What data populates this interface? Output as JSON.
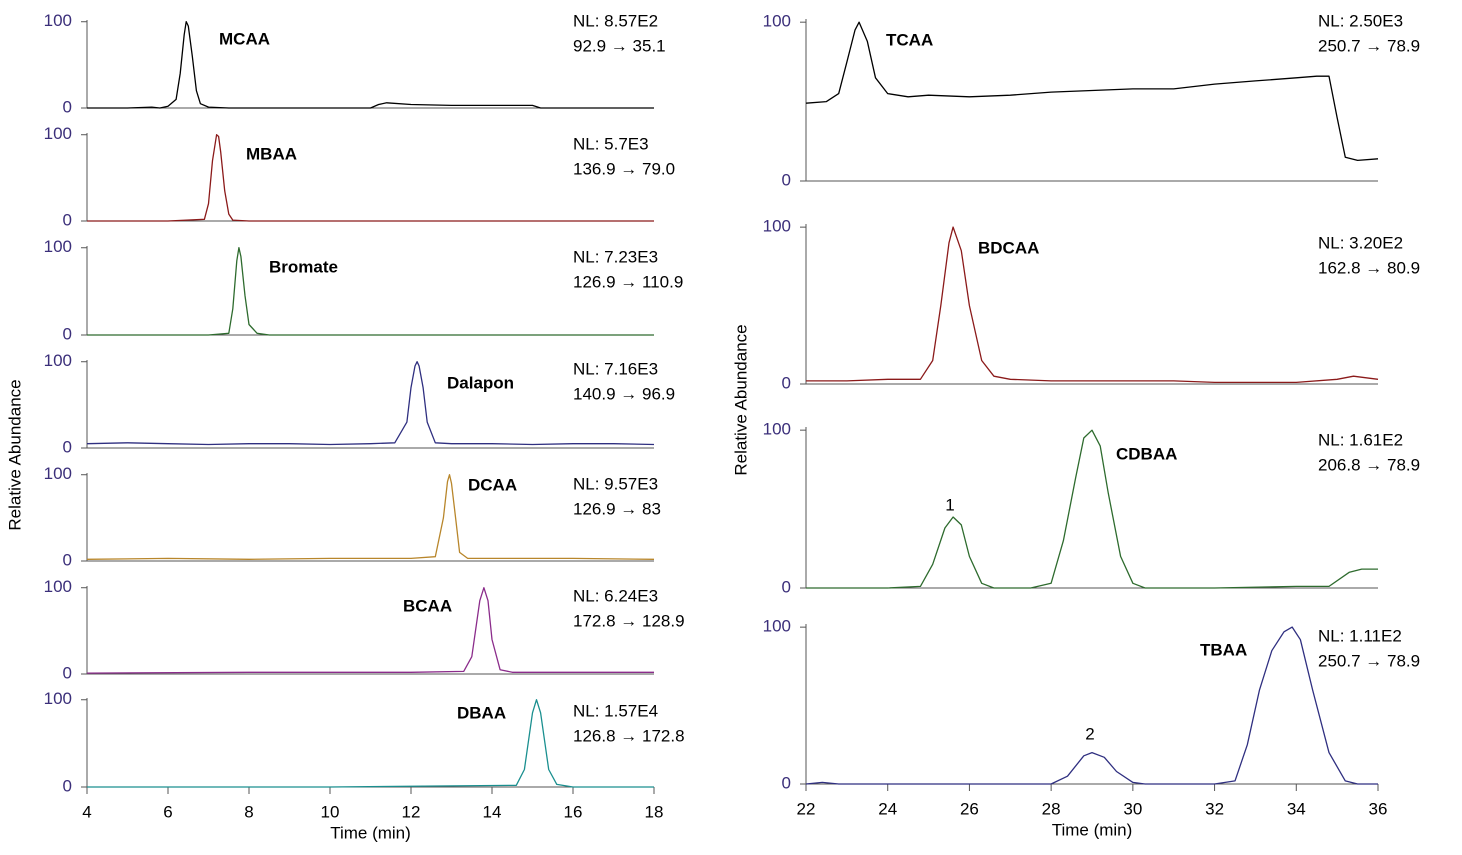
{
  "chart_data": [
    {
      "type": "line",
      "title": "MCAA",
      "annotations": [
        "NL: 8.57E2",
        "92.9 → 35.1"
      ],
      "color": "#000000",
      "ylabel": "Relative Abundance",
      "xlim": [
        4,
        18
      ],
      "ylim": [
        0,
        102
      ],
      "yticks": [
        0,
        100
      ],
      "x": [
        4,
        5,
        5.6,
        5.8,
        6.0,
        6.2,
        6.3,
        6.4,
        6.45,
        6.5,
        6.6,
        6.7,
        6.8,
        7.0,
        7.5,
        8,
        9,
        10,
        11,
        11.2,
        11.4,
        12,
        13,
        14,
        15,
        15.2,
        16,
        17,
        18
      ],
      "values": [
        0,
        0,
        1,
        0,
        2,
        10,
        40,
        85,
        100,
        95,
        60,
        20,
        5,
        1,
        0,
        0,
        0,
        0,
        0,
        4,
        6,
        4,
        3,
        3,
        3,
        0,
        0,
        0,
        0
      ]
    },
    {
      "type": "line",
      "title": "MBAA",
      "annotations": [
        "NL: 5.7E3",
        "136.9 → 79.0"
      ],
      "color": "#8b1a1a",
      "xlim": [
        4,
        18
      ],
      "ylim": [
        0,
        102
      ],
      "yticks": [
        0,
        100
      ],
      "x": [
        4,
        6,
        6.9,
        7.0,
        7.1,
        7.2,
        7.25,
        7.3,
        7.4,
        7.5,
        7.6,
        8,
        10,
        12,
        14,
        16,
        18
      ],
      "values": [
        0,
        0,
        2,
        20,
        70,
        100,
        98,
        80,
        35,
        8,
        1,
        0,
        0,
        0,
        0,
        0,
        0
      ]
    },
    {
      "type": "line",
      "title": "Bromate",
      "annotations": [
        "NL: 7.23E3",
        "126.9 → 110.9"
      ],
      "color": "#2e6b2e",
      "xlim": [
        4,
        18
      ],
      "ylim": [
        0,
        102
      ],
      "yticks": [
        0,
        100
      ],
      "x": [
        4,
        7,
        7.5,
        7.6,
        7.7,
        7.75,
        7.8,
        7.9,
        8.0,
        8.2,
        8.5,
        10,
        18
      ],
      "values": [
        0,
        0,
        2,
        30,
        85,
        100,
        90,
        45,
        12,
        2,
        0,
        0,
        0
      ]
    },
    {
      "type": "line",
      "title": "Dalapon",
      "annotations": [
        "NL: 7.16E3",
        "140.9 → 96.9"
      ],
      "color": "#2f2f80",
      "xlim": [
        4,
        18
      ],
      "ylim": [
        0,
        102
      ],
      "yticks": [
        0,
        100
      ],
      "x": [
        4,
        5,
        6,
        7,
        8,
        9,
        10,
        11,
        11.6,
        11.9,
        12.0,
        12.1,
        12.15,
        12.2,
        12.3,
        12.4,
        12.6,
        13,
        14,
        15,
        16,
        17,
        18
      ],
      "values": [
        5,
        6,
        5,
        4,
        5,
        5,
        4,
        5,
        6,
        30,
        70,
        95,
        100,
        95,
        70,
        30,
        6,
        5,
        5,
        4,
        5,
        5,
        4
      ]
    },
    {
      "type": "line",
      "title": "DCAA",
      "annotations": [
        "NL: 9.57E3",
        "126.9 → 83"
      ],
      "color": "#b8862b",
      "xlim": [
        4,
        18
      ],
      "ylim": [
        0,
        102
      ],
      "yticks": [
        0,
        100
      ],
      "x": [
        4,
        6,
        8,
        10,
        12,
        12.6,
        12.8,
        12.9,
        12.95,
        13.0,
        13.1,
        13.2,
        13.4,
        14,
        16,
        18
      ],
      "values": [
        2,
        3,
        2,
        3,
        3,
        5,
        50,
        92,
        100,
        90,
        50,
        10,
        3,
        3,
        3,
        2
      ]
    },
    {
      "type": "line",
      "title": "BCAA",
      "annotations": [
        "NL: 6.24E3",
        "172.8 → 128.9"
      ],
      "color": "#8b2c8b",
      "xlim": [
        4,
        18
      ],
      "ylim": [
        0,
        102
      ],
      "yticks": [
        0,
        100
      ],
      "x": [
        4,
        8,
        12,
        13.3,
        13.5,
        13.7,
        13.8,
        13.9,
        14.0,
        14.2,
        14.5,
        16,
        18
      ],
      "values": [
        1,
        2,
        2,
        3,
        20,
        85,
        100,
        85,
        40,
        5,
        2,
        2,
        2
      ]
    },
    {
      "type": "line",
      "title": "DBAA",
      "annotations": [
        "NL: 1.57E4",
        "126.8 → 172.8"
      ],
      "color": "#1a8f8f",
      "xlabel": "Time (min)",
      "xlim": [
        4,
        18
      ],
      "xticks": [
        4,
        6,
        8,
        10,
        12,
        14,
        16,
        18
      ],
      "ylim": [
        0,
        102
      ],
      "yticks": [
        0,
        100
      ],
      "x": [
        4,
        10,
        14.6,
        14.8,
        15.0,
        15.1,
        15.2,
        15.4,
        15.6,
        16,
        18
      ],
      "values": [
        0,
        0,
        2,
        20,
        85,
        100,
        85,
        20,
        3,
        0,
        0
      ]
    },
    {
      "type": "line",
      "title": "TCAA",
      "annotations": [
        "NL: 2.50E3",
        "250.7 → 78.9"
      ],
      "color": "#000000",
      "xlim": [
        22,
        36
      ],
      "ylim": [
        0,
        102
      ],
      "yticks": [
        0,
        100
      ],
      "x": [
        22,
        22.5,
        22.8,
        23.0,
        23.2,
        23.3,
        23.5,
        23.7,
        24.0,
        24.5,
        25,
        26,
        27,
        28,
        29,
        30,
        31,
        32,
        33,
        34,
        34.5,
        34.8,
        35.0,
        35.2,
        35.5,
        36
      ],
      "values": [
        49,
        50,
        55,
        75,
        95,
        100,
        88,
        65,
        55,
        53,
        54,
        53,
        54,
        56,
        57,
        58,
        58,
        61,
        63,
        65,
        66,
        66,
        40,
        15,
        13,
        14
      ]
    },
    {
      "type": "line",
      "title": "BDCAA",
      "annotations": [
        "NL: 3.20E2",
        "162.8 → 80.9"
      ],
      "color": "#8b1a1a",
      "ylabel": "Relative Abundance",
      "xlim": [
        22,
        36
      ],
      "ylim": [
        0,
        102
      ],
      "yticks": [
        0,
        100
      ],
      "x": [
        22,
        23,
        24,
        24.8,
        25.1,
        25.3,
        25.5,
        25.6,
        25.8,
        26.0,
        26.3,
        26.6,
        27,
        28,
        29,
        30,
        31,
        32,
        34,
        35,
        35.4,
        36
      ],
      "values": [
        2,
        2,
        3,
        3,
        15,
        50,
        90,
        100,
        85,
        50,
        15,
        5,
        3,
        2,
        2,
        2,
        2,
        1,
        1,
        3,
        5,
        3
      ]
    },
    {
      "type": "line",
      "title": "CDBAA",
      "annotations": [
        "NL: 1.61E2",
        "206.8 → 78.9"
      ],
      "peak_label": "1",
      "color": "#2e6b2e",
      "xlim": [
        22,
        36
      ],
      "ylim": [
        0,
        102
      ],
      "yticks": [
        0,
        100
      ],
      "x": [
        22,
        24,
        24.8,
        25.1,
        25.4,
        25.6,
        25.8,
        26.0,
        26.3,
        26.6,
        27,
        27.5,
        28.0,
        28.3,
        28.6,
        28.8,
        29.0,
        29.2,
        29.4,
        29.7,
        30.0,
        30.3,
        30.6,
        31,
        32,
        34,
        34.8,
        35.3,
        35.6,
        36
      ],
      "values": [
        0,
        0,
        1,
        15,
        38,
        45,
        40,
        20,
        3,
        0,
        0,
        0,
        3,
        30,
        70,
        95,
        100,
        90,
        60,
        20,
        3,
        0,
        0,
        0,
        0,
        1,
        1,
        10,
        12,
        12
      ]
    },
    {
      "type": "line",
      "title": "TBAA",
      "annotations": [
        "NL: 1.11E2",
        "250.7 → 78.9"
      ],
      "peak_label": "2",
      "color": "#2f2f80",
      "xlabel": "Time (min)",
      "xlim": [
        22,
        36
      ],
      "xticks": [
        22,
        24,
        26,
        28,
        30,
        32,
        34,
        36
      ],
      "ylim": [
        0,
        102
      ],
      "yticks": [
        0,
        100
      ],
      "x": [
        22,
        22.4,
        22.8,
        23,
        26,
        28,
        28.4,
        28.8,
        29.0,
        29.3,
        29.6,
        30,
        30.3,
        31,
        32,
        32.5,
        32.8,
        33.1,
        33.4,
        33.7,
        33.9,
        34.1,
        34.4,
        34.8,
        35.2,
        35.5,
        36
      ],
      "values": [
        0,
        1,
        0,
        0,
        0,
        0,
        5,
        18,
        20,
        17,
        8,
        1,
        0,
        0,
        0,
        2,
        25,
        60,
        85,
        97,
        100,
        92,
        60,
        20,
        2,
        0,
        0
      ]
    }
  ]
}
